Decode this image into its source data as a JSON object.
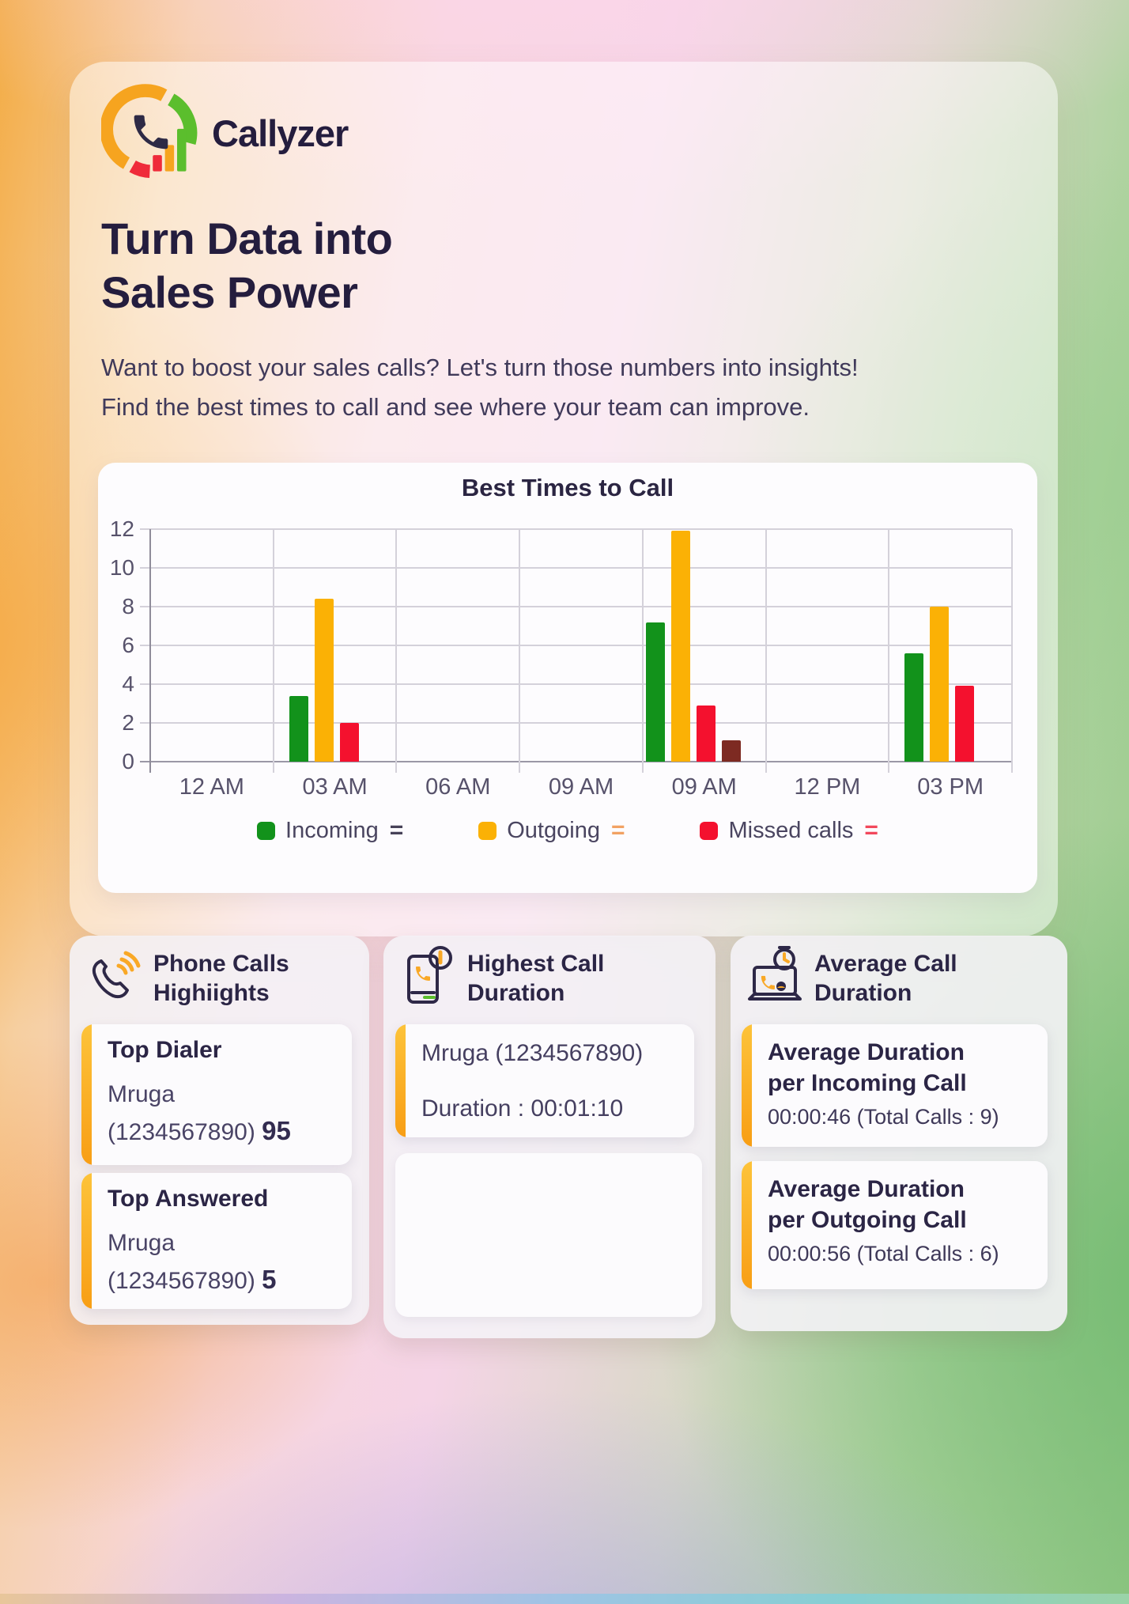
{
  "logo": {
    "brand": "Callyzer"
  },
  "hero": {
    "title_line1": "Turn Data into",
    "title_line2": "Sales Power",
    "subtitle_line1": "Want to boost your sales calls? Let's turn those numbers into insights!",
    "subtitle_line2": "Find the best times to call and see where your team can improve."
  },
  "theme": {
    "accent_orange": "#FAAD1D",
    "heading_color": "#241D3E",
    "incoming_green": "#12921B",
    "outgoing_yellow": "#FBB105",
    "missed_red": "#F4112E",
    "extra_dark_red": "#7D2A22"
  },
  "chart_data": {
    "type": "bar",
    "title": "Best Times to Call",
    "categories": [
      "12 AM",
      "03 AM",
      "06 AM",
      "09 AM",
      "09 AM",
      "12 PM",
      "03 PM"
    ],
    "series": [
      {
        "name": "Incoming",
        "color": "#12921B",
        "values": [
          0,
          3.4,
          0,
          0,
          7.2,
          0,
          5.6
        ]
      },
      {
        "name": "Outgoing",
        "color": "#FBB105",
        "values": [
          0,
          8.4,
          0,
          0,
          11.9,
          0,
          8.0
        ]
      },
      {
        "name": "Missed calls",
        "color": "#F4112E",
        "values": [
          0,
          2.0,
          0,
          0,
          2.9,
          0,
          3.9
        ]
      },
      {
        "name": "unlabeled-series",
        "color": "#7D2A22",
        "values": [
          0,
          0,
          0,
          0,
          1.1,
          0,
          0
        ]
      }
    ],
    "xlabel": "",
    "ylabel": "",
    "ylim": [
      0,
      12
    ],
    "yticks": [
      0,
      2,
      4,
      6,
      8,
      10,
      12
    ],
    "grid": true,
    "legend_position": "bottom",
    "legend": [
      {
        "label": "Incoming",
        "eq": "=",
        "color": "#12921B",
        "eq_color": "#474258"
      },
      {
        "label": "Outgoing",
        "eq": "=",
        "color": "#FBB105",
        "eq_color": "#F2A263"
      },
      {
        "label": "Missed calls",
        "eq": "=",
        "color": "#F4112E",
        "eq_color": "#F2485C"
      }
    ]
  },
  "cards": {
    "highlights": {
      "icon": "phone-waves-icon",
      "title_line1": "Phone Calls",
      "title_line2": "Highiights",
      "items": [
        {
          "label": "Top Dialer",
          "name": "Mruga",
          "number": "(1234567890)",
          "value": "95"
        },
        {
          "label": "Top Answered",
          "name": "Mruga",
          "number": "(1234567890)",
          "value": "5"
        }
      ]
    },
    "highest": {
      "icon": "phone-clock-icon",
      "title_line1": "Highest Call",
      "title_line2": "Duration",
      "contact": "Mruga (1234567890)",
      "duration": "Duration : 00:01:10"
    },
    "average": {
      "icon": "laptop-stopwatch-icon",
      "title_line1": "Average Call",
      "title_line2": "Duration",
      "items": [
        {
          "line1": "Average Duration",
          "line2": "per Incoming Call",
          "value": "00:00:46 (Total Calls : 9)"
        },
        {
          "line1": "Average Duration",
          "line2": "per Outgoing Call",
          "value": "00:00:56 (Total Calls : 6)"
        }
      ]
    }
  }
}
